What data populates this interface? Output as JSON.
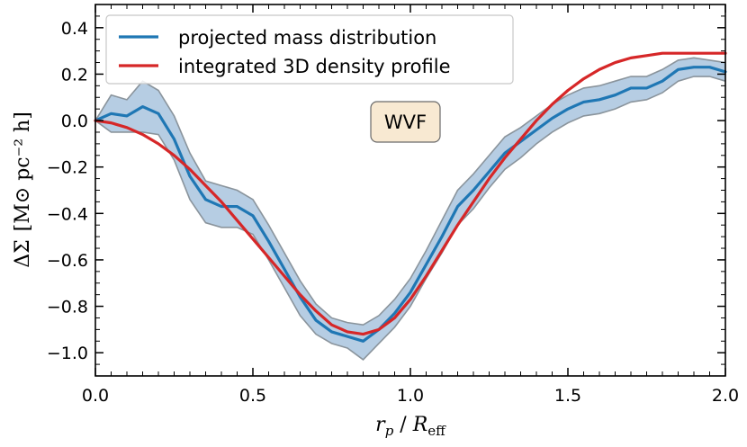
{
  "chart_data": {
    "type": "line",
    "title": "",
    "xlabel": "r_p / R_eff",
    "ylabel": "ΔΣ [M⊙ pc⁻² h]",
    "xlim": [
      0.0,
      2.0
    ],
    "ylim": [
      -1.1,
      0.5
    ],
    "x_ticks": [
      0.0,
      0.5,
      1.0,
      1.5,
      2.0
    ],
    "x_tick_labels": [
      "0.0",
      "0.5",
      "1.0",
      "1.5",
      "2.0"
    ],
    "y_ticks": [
      -1.0,
      -0.8,
      -0.6,
      -0.4,
      -0.2,
      0.0,
      0.2,
      0.4
    ],
    "y_tick_labels": [
      "−1.0",
      "−0.8",
      "−0.6",
      "−0.4",
      "−0.2",
      "0.0",
      "0.2",
      "0.4"
    ],
    "legend_position": "top-left",
    "annotation": "WVF",
    "axis_label_parts": {
      "x_main": "r",
      "x_sub": "p",
      "x_sep": " / ",
      "x_denom": "R",
      "x_denom_sub": "eff",
      "y_main": "ΔΣ",
      "y_units": "[M⊙ pc⁻² h]"
    },
    "series": [
      {
        "name": "projected mass distribution",
        "color": "#1f77b4",
        "band_color": "#a9c4de",
        "band_edge_color": "#8a949c",
        "x": [
          0.0,
          0.05,
          0.1,
          0.15,
          0.2,
          0.25,
          0.3,
          0.35,
          0.4,
          0.45,
          0.5,
          0.55,
          0.6,
          0.65,
          0.7,
          0.75,
          0.8,
          0.85,
          0.9,
          0.95,
          1.0,
          1.05,
          1.1,
          1.15,
          1.2,
          1.25,
          1.3,
          1.35,
          1.4,
          1.45,
          1.5,
          1.55,
          1.6,
          1.65,
          1.7,
          1.75,
          1.8,
          1.85,
          1.9,
          1.95,
          2.0
        ],
        "values": [
          0.0,
          0.03,
          0.02,
          0.06,
          0.03,
          -0.08,
          -0.24,
          -0.34,
          -0.37,
          -0.37,
          -0.41,
          -0.52,
          -0.64,
          -0.76,
          -0.86,
          -0.91,
          -0.93,
          -0.95,
          -0.9,
          -0.83,
          -0.74,
          -0.62,
          -0.5,
          -0.37,
          -0.3,
          -0.22,
          -0.14,
          -0.09,
          -0.04,
          0.01,
          0.05,
          0.08,
          0.09,
          0.11,
          0.14,
          0.14,
          0.17,
          0.22,
          0.23,
          0.23,
          0.21
        ],
        "band_upper": [
          0.0,
          0.11,
          0.09,
          0.17,
          0.13,
          0.02,
          -0.14,
          -0.26,
          -0.28,
          -0.3,
          -0.34,
          -0.45,
          -0.57,
          -0.69,
          -0.79,
          -0.85,
          -0.87,
          -0.88,
          -0.84,
          -0.77,
          -0.68,
          -0.56,
          -0.43,
          -0.3,
          -0.23,
          -0.15,
          -0.07,
          -0.03,
          0.02,
          0.07,
          0.11,
          0.14,
          0.15,
          0.17,
          0.19,
          0.19,
          0.22,
          0.26,
          0.27,
          0.26,
          0.25
        ],
        "band_lower": [
          0.0,
          -0.05,
          -0.05,
          -0.05,
          -0.06,
          -0.17,
          -0.34,
          -0.44,
          -0.46,
          -0.46,
          -0.49,
          -0.6,
          -0.72,
          -0.84,
          -0.92,
          -0.96,
          -0.98,
          -1.03,
          -0.96,
          -0.89,
          -0.8,
          -0.68,
          -0.57,
          -0.45,
          -0.38,
          -0.29,
          -0.21,
          -0.16,
          -0.1,
          -0.05,
          -0.01,
          0.02,
          0.03,
          0.05,
          0.08,
          0.09,
          0.12,
          0.17,
          0.19,
          0.19,
          0.17
        ]
      },
      {
        "name": "integrated 3D density profile",
        "color": "#d62728",
        "x": [
          0.0,
          0.05,
          0.1,
          0.15,
          0.2,
          0.25,
          0.3,
          0.35,
          0.4,
          0.45,
          0.5,
          0.55,
          0.6,
          0.65,
          0.7,
          0.75,
          0.8,
          0.85,
          0.9,
          0.95,
          1.0,
          1.05,
          1.1,
          1.15,
          1.2,
          1.25,
          1.3,
          1.35,
          1.4,
          1.45,
          1.5,
          1.55,
          1.6,
          1.65,
          1.7,
          1.75,
          1.8,
          1.85,
          1.9,
          1.95,
          2.0
        ],
        "values": [
          0.0,
          -0.01,
          -0.03,
          -0.06,
          -0.1,
          -0.15,
          -0.21,
          -0.28,
          -0.35,
          -0.43,
          -0.51,
          -0.59,
          -0.67,
          -0.75,
          -0.82,
          -0.88,
          -0.91,
          -0.92,
          -0.9,
          -0.85,
          -0.77,
          -0.67,
          -0.56,
          -0.45,
          -0.35,
          -0.25,
          -0.16,
          -0.08,
          0.0,
          0.07,
          0.13,
          0.18,
          0.22,
          0.25,
          0.27,
          0.28,
          0.29,
          0.29,
          0.29,
          0.29,
          0.29
        ]
      }
    ]
  }
}
